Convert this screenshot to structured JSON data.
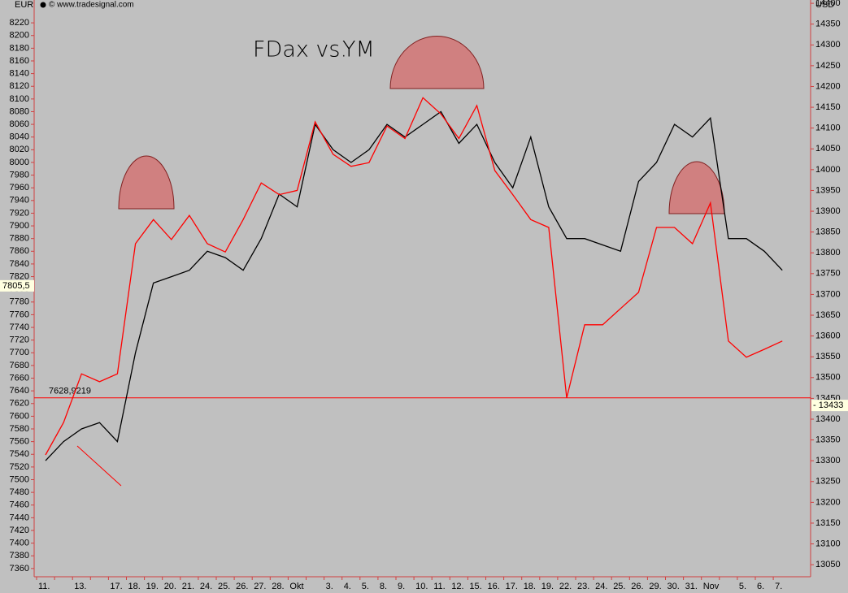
{
  "chart_data": {
    "type": "line",
    "source": "© www.tradesignal.com",
    "title_parts": [
      "FDax vs.",
      "YM"
    ],
    "title_colors": [
      "#000000",
      "#ff0000"
    ],
    "y_unit": "EUR",
    "y2_unit": "USD",
    "categories": [
      "11.",
      null,
      "13.",
      null,
      "17.",
      "18.",
      "19.",
      "20.",
      "21.",
      "24.",
      "25.",
      "26.",
      "27.",
      "28.",
      "Okt",
      null,
      "3.",
      "4.",
      "5.",
      "8.",
      "9.",
      "10.",
      "11.",
      "12.",
      "15.",
      "16.",
      "17.",
      "18.",
      "19.",
      "22.",
      "23.",
      "24.",
      "25.",
      "26.",
      "29.",
      "30.",
      "31.",
      "Nov",
      null,
      "5.",
      "6.",
      "7."
    ],
    "series": [
      {
        "color": "#000000",
        "axis": "y",
        "values": [
          7530,
          7560,
          7580,
          7590,
          7560,
          7700,
          7810,
          7820,
          7830,
          7860,
          7850,
          7830,
          7880,
          7950,
          7930,
          8060,
          8020,
          8000,
          8020,
          8060,
          8040,
          8060,
          8080,
          8030,
          8060,
          8000,
          7960,
          8040,
          7930,
          7880,
          7880,
          7870,
          7860,
          7970,
          8000,
          8060,
          8040,
          8070,
          7880,
          7880,
          7860,
          7830
        ]
      },
      {
        "color": "#ff0000",
        "axis": "y2",
        "values": [
          13314,
          13392,
          13509,
          13490,
          13509,
          13822,
          13880,
          13832,
          13890,
          13822,
          13802,
          13880,
          13968,
          13940,
          13950,
          14115,
          14037,
          14008,
          14017,
          14105,
          14075,
          14173,
          14134,
          14075,
          14154,
          13998,
          13940,
          13880,
          13861,
          13451,
          13627,
          13627,
          13666,
          13705,
          13861,
          13861,
          13822,
          13920,
          13588,
          13549,
          13568,
          13588
        ]
      }
    ],
    "ylim": [
      7347,
      8256
    ],
    "yticks": [
      7360,
      7380,
      7400,
      7420,
      7440,
      7460,
      7480,
      7500,
      7520,
      7540,
      7560,
      7580,
      7600,
      7620,
      7640,
      7660,
      7680,
      7700,
      7720,
      7740,
      7760,
      7780,
      7800,
      7820,
      7840,
      7860,
      7880,
      7900,
      7920,
      7940,
      7960,
      7980,
      8000,
      8020,
      8040,
      8060,
      8080,
      8100,
      8120,
      8140,
      8160,
      8180,
      8200,
      8220
    ],
    "y2lim": [
      13021,
      14408
    ],
    "y2ticks": [
      13050,
      13100,
      13150,
      13200,
      13250,
      13300,
      13350,
      13400,
      13450,
      13500,
      13550,
      13600,
      13650,
      13700,
      13750,
      13800,
      13850,
      13900,
      13950,
      14000,
      14050,
      14100,
      14150,
      14200,
      14250,
      14300,
      14350,
      14400
    ],
    "hline": {
      "value": 7628.9219,
      "label": "7628,9219",
      "color": "#ff0000"
    },
    "y_current": {
      "value": 7805.5,
      "label": "7805,5"
    },
    "y2_current": {
      "value": 13433,
      "label": "- 13433"
    },
    "grid": false
  }
}
